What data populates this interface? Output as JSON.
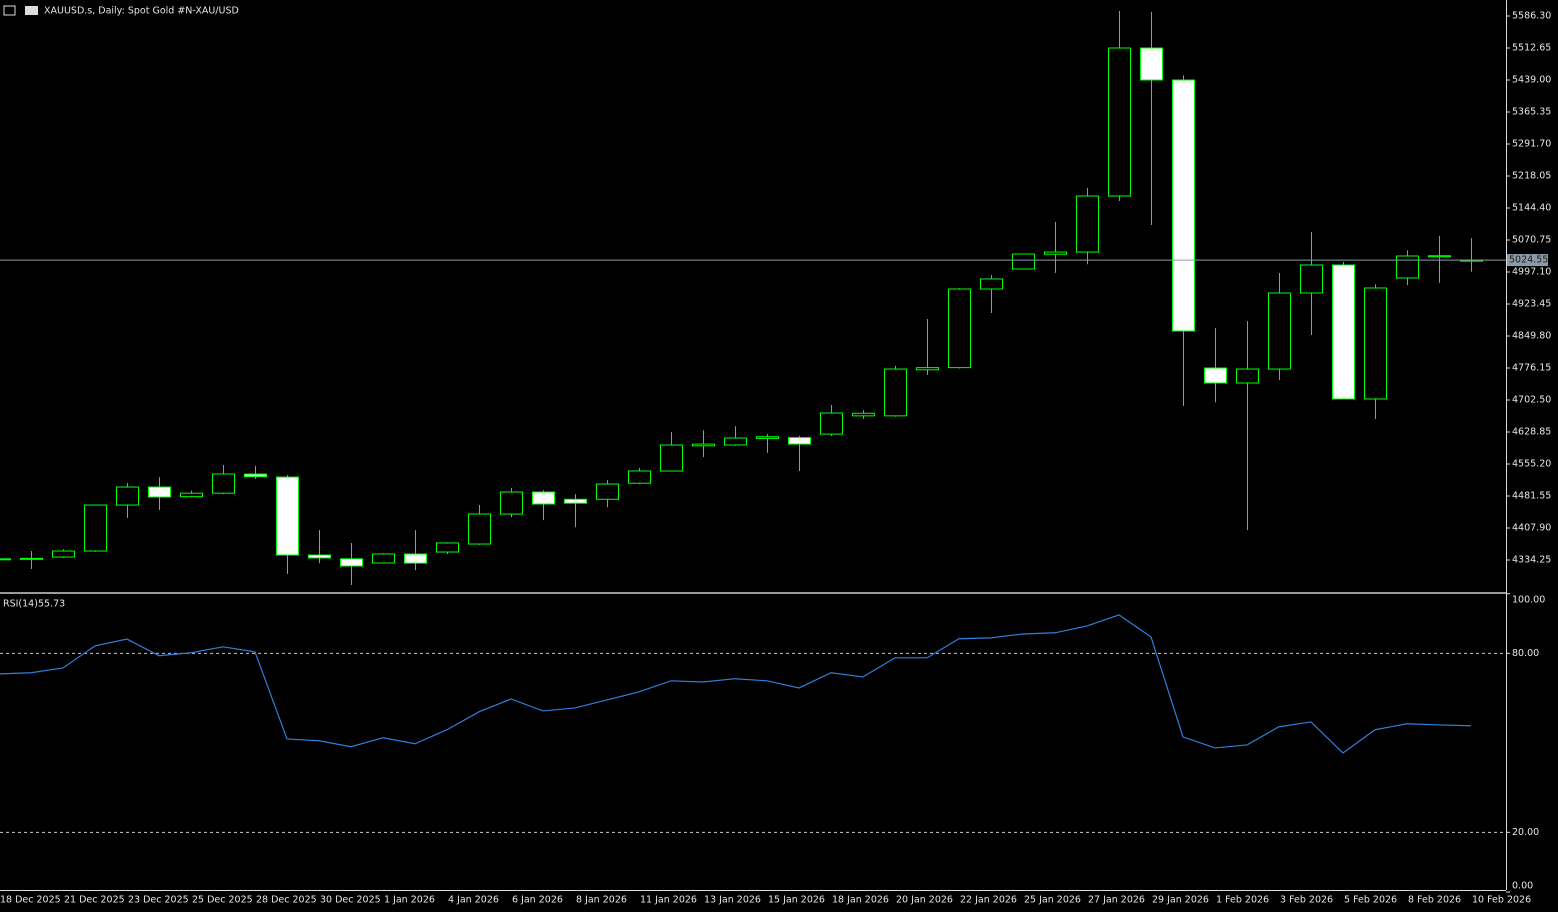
{
  "chart_data": [
    {
      "type": "candlestick",
      "title": "XAUUSD.s, Daily:  Spot Gold #N-XAU/USD",
      "categories": [
        "18 Dec 2025",
        null,
        "21 Dec 2025",
        null,
        "23 Dec 2025",
        null,
        "25 Dec 2025",
        null,
        "28 Dec 2025",
        null,
        "30 Dec 2025",
        null,
        "1 Jan 2026",
        null,
        "4 Jan 2026",
        null,
        "6 Jan 2026",
        null,
        "8 Jan 2026",
        null,
        "11 Jan 2026",
        null,
        "13 Jan 2026",
        null,
        "15 Jan 2026",
        null,
        "18 Jan 2026",
        null,
        "20 Jan 2026",
        null,
        "22 Jan 2026",
        null,
        "25 Jan 2026",
        null,
        "27 Jan 2026",
        null,
        "29 Jan 2026",
        null,
        "1 Feb 2026",
        null,
        "3 Feb 2026",
        null,
        "5 Feb 2026",
        null,
        "8 Feb 2026",
        null,
        "10 Feb 2026"
      ],
      "open": [
        4335,
        4336,
        4341.1,
        4354.9,
        4460.8,
        4502.2,
        4480,
        4488,
        4532,
        4525.1,
        4345.7,
        4337,
        4327.3,
        4348,
        4352.6,
        4371,
        4440,
        4490.7,
        4474,
        4474,
        4511,
        4539,
        4597,
        4599,
        4614,
        4616,
        4624,
        4666,
        4666,
        4772,
        4777,
        4958,
        5004,
        5038,
        5043,
        5172,
        5512.6,
        5439,
        4776.1,
        4741.6,
        4773.8,
        4948.8,
        5013.2,
        4704.8,
        4983.3,
        5032,
        5022
      ],
      "high": [
        4340,
        4354.9,
        4359,
        4462,
        4511.5,
        4525.1,
        4494,
        4553,
        4551,
        4530,
        4403.3,
        4373.4,
        4350,
        4403,
        4375,
        4460.8,
        4500,
        4495,
        4486,
        4518,
        4546,
        4628.8,
        4633,
        4642,
        4624,
        4620,
        4691,
        4679,
        4781,
        4888.9,
        4960,
        4990,
        5039,
        5112.2,
        5190.4,
        5597.8,
        5595.5,
        5450,
        4868,
        4884,
        4994.8,
        5089.2,
        5020,
        4969,
        5047,
        5080,
        5075
      ],
      "low": [
        4333,
        4313.5,
        4339,
        4353,
        4430.9,
        4449.3,
        4478,
        4486,
        4521,
        4302,
        4327,
        4276.7,
        4326,
        4311,
        4348,
        4369,
        4433,
        4426,
        4410,
        4456,
        4509,
        4538,
        4571,
        4597,
        4581,
        4539,
        4620,
        4659,
        4664,
        4760,
        4775,
        4902.7,
        5003,
        4995,
        5015,
        5160.5,
        5105.3,
        4688.7,
        4697,
        4403.3,
        4748.5,
        4852.1,
        4704,
        4658.7,
        4967,
        4972,
        4998
      ],
      "close": [
        4337,
        4338,
        4354.9,
        4460.8,
        4502.2,
        4479.2,
        4488,
        4532.2,
        4526,
        4345.7,
        4339,
        4320.4,
        4348.1,
        4327,
        4373.4,
        4440.1,
        4490.7,
        4463.1,
        4465,
        4509.1,
        4539.1,
        4598.9,
        4601,
        4615,
        4618,
        4601,
        4672.6,
        4672,
        4773.8,
        4777,
        4958,
        4981,
        5038.5,
        5043,
        5172,
        5512.6,
        5439,
        4861.3,
        4741.6,
        4773.8,
        4948.8,
        5013.2,
        4704.8,
        4960.3,
        5033.9,
        5034.5,
        5024.55
      ],
      "up_color": "#00ff00",
      "down_color": "#ffffff",
      "price_line_color": "#8c9aa8",
      "ylim": [
        4260.6,
        5623.1
      ],
      "yticks": [
        {
          "value": 5586.3,
          "label": "5586.30"
        },
        {
          "value": 5512.65,
          "label": "5512.65"
        },
        {
          "value": 5439,
          "label": "5439.00"
        },
        {
          "value": 5365.35,
          "label": "5365.35"
        },
        {
          "value": 5291.7,
          "label": "5291.70"
        },
        {
          "value": 5218.05,
          "label": "5218.05"
        },
        {
          "value": 5144.4,
          "label": "5144.40"
        },
        {
          "value": 5070.75,
          "label": "5070.75"
        },
        {
          "value": 4997.1,
          "label": "4997.10"
        },
        {
          "value": 4923.45,
          "label": "4923.45"
        },
        {
          "value": 4849.8,
          "label": "4849.80"
        },
        {
          "value": 4776.15,
          "label": "4776.15"
        },
        {
          "value": 4702.5,
          "label": "4702.50"
        },
        {
          "value": 4628.85,
          "label": "4628.85"
        },
        {
          "value": 4555.2,
          "label": "4555.20"
        },
        {
          "value": 4481.55,
          "label": "4481.55"
        },
        {
          "value": 4407.9,
          "label": "4407.90"
        },
        {
          "value": 4334.25,
          "label": "4334.25"
        }
      ]
    },
    {
      "type": "line",
      "title": "RSI(14)",
      "color": "#2f7fdc",
      "values": [
        73.1,
        73.5,
        75.1,
        82.5,
        84.8,
        79.2,
        80.2,
        82.2,
        80.5,
        51.3,
        50.7,
        48.7,
        51.7,
        49.7,
        54.4,
        60.4,
        64.7,
        60.7,
        61.7,
        64.4,
        67.1,
        70.8,
        70.4,
        71.5,
        70.8,
        68.4,
        73.5,
        72.1,
        78.5,
        78.5,
        84.9,
        85.2,
        86.5,
        86.9,
        89.2,
        92.9,
        85.5,
        52.0,
        48.3,
        49.3,
        55.4,
        57.0,
        46.6,
        54.4,
        56.4,
        56.0,
        55.73
      ],
      "ylim": [
        0,
        100
      ],
      "yticks": [
        {
          "value": 100,
          "label": "100.00"
        },
        {
          "value": 80,
          "label": "80.00"
        },
        {
          "value": 20,
          "label": "20.00"
        },
        {
          "value": 0,
          "label": "0.00"
        }
      ],
      "levels": [
        80,
        20
      ]
    }
  ]
}
